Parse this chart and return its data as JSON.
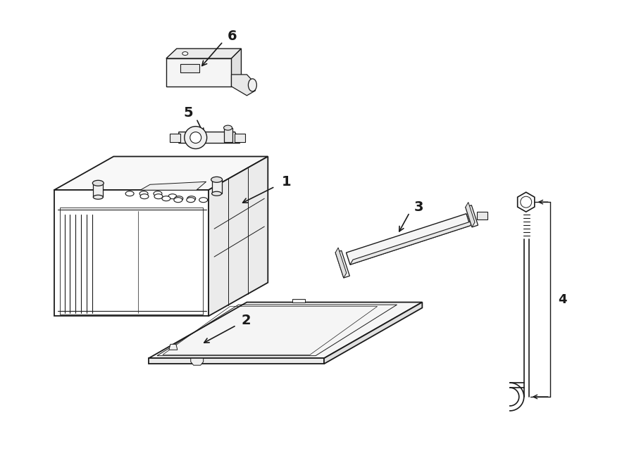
{
  "bg": "#ffffff",
  "lc": "#1a1a1a",
  "lw_main": 1.3,
  "lw_thin": 0.7,
  "fig_w": 9.0,
  "fig_h": 6.61,
  "dpi": 100
}
